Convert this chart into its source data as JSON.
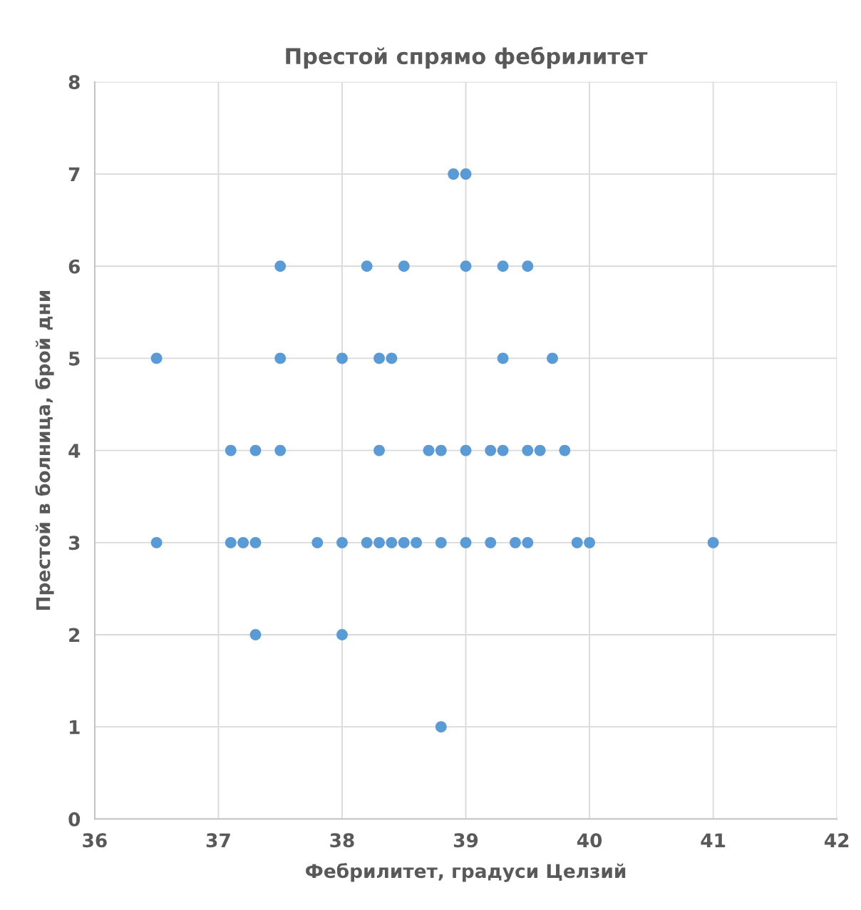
{
  "chart_data": {
    "type": "scatter",
    "title": "Престой спрямо фебрилитет",
    "xlabel": "Фебрилитет, градуси Целзий",
    "ylabel": "Престой в болница, брой дни",
    "x": [
      38.9,
      39.0,
      37.5,
      38.2,
      38.5,
      39.0,
      39.3,
      39.5,
      36.5,
      37.5,
      38.0,
      38.3,
      38.4,
      39.3,
      39.7,
      37.1,
      37.3,
      37.5,
      38.3,
      38.7,
      38.8,
      39.0,
      39.2,
      39.3,
      39.5,
      39.6,
      39.8,
      36.5,
      37.1,
      37.2,
      37.3,
      37.8,
      38.0,
      38.2,
      38.3,
      38.4,
      38.5,
      38.6,
      38.8,
      39.0,
      39.2,
      39.4,
      39.5,
      39.9,
      40.0,
      41.0,
      37.3,
      38.0,
      38.8
    ],
    "values": [
      7,
      7,
      6,
      6,
      6,
      6,
      6,
      6,
      5,
      5,
      5,
      5,
      5,
      5,
      5,
      4,
      4,
      4,
      4,
      4,
      4,
      4,
      4,
      4,
      4,
      4,
      4,
      3,
      3,
      3,
      3,
      3,
      3,
      3,
      3,
      3,
      3,
      3,
      3,
      3,
      3,
      3,
      3,
      3,
      3,
      3,
      2,
      2,
      1
    ],
    "color": "#5b9bd5",
    "marker": "circle",
    "xlim": [
      36,
      42
    ],
    "xticks": [
      36,
      37,
      38,
      39,
      40,
      41,
      42
    ],
    "ylim": [
      0,
      8
    ],
    "yticks": [
      0,
      1,
      2,
      3,
      4,
      5,
      6,
      7,
      8
    ],
    "grid": true,
    "legend": false
  }
}
